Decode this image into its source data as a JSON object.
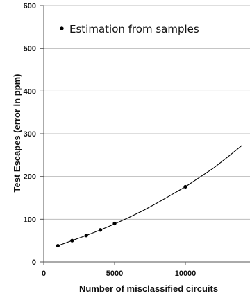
{
  "chart_data": {
    "type": "scatter",
    "title": "",
    "xlabel": "Number of misclassified circuits",
    "ylabel": "Test Escapes (error in ppm)",
    "xlim": [
      0,
      15000
    ],
    "ylim": [
      0,
      600
    ],
    "x_ticks": [
      "0",
      "5000",
      "10000"
    ],
    "y_ticks": [
      "0",
      "100",
      "200",
      "300",
      "400",
      "500",
      "600"
    ],
    "grid": "horizontal",
    "legend_position": "top-left",
    "series": [
      {
        "name": "Estimation from samples",
        "marker": "dot",
        "x": [
          1000,
          2000,
          3000,
          4000,
          5000,
          10000
        ],
        "y": [
          38,
          50,
          62,
          75,
          90,
          176
        ]
      }
    ],
    "trend_curve": {
      "x": [
        1000,
        2000,
        3000,
        4000,
        5000,
        6000,
        7000,
        8000,
        9000,
        10000,
        11000,
        12000,
        13000,
        14000,
        15000
      ],
      "y": [
        38,
        50,
        62,
        75,
        89,
        104,
        120,
        138,
        157,
        176,
        198,
        220,
        246,
        273,
        282
      ]
    },
    "colors": {
      "marker": "#000000",
      "line": "#000000",
      "grid": "#bdbdbd",
      "axis": "#555555"
    }
  }
}
